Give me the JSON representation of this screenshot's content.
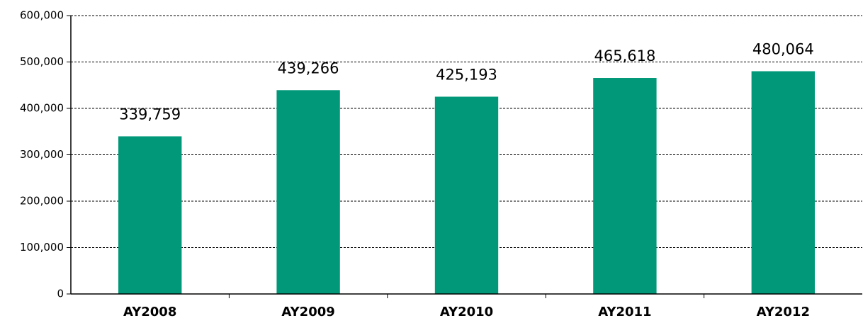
{
  "chart_data": {
    "type": "bar",
    "categories": [
      "AY2008",
      "AY2009",
      "AY2010",
      "AY2011",
      "AY2012"
    ],
    "values": [
      339759,
      439266,
      425193,
      465618,
      480064
    ],
    "value_labels": [
      "339,759",
      "439,266",
      "425,193",
      "465,618",
      "480,064"
    ],
    "color": "#009878",
    "ylim": [
      0,
      600000
    ],
    "yticks": [
      0,
      {
        "value": 100000,
        "label": "100,000"
      },
      {
        "value": 200000,
        "label": "200,000"
      },
      {
        "value": 300000,
        "label": "300,000"
      },
      {
        "value": 400000,
        "label": "400,000"
      },
      {
        "value": 500000,
        "label": "500,000"
      },
      {
        "value": 600000,
        "label": "600,000"
      }
    ],
    "grid": true
  }
}
